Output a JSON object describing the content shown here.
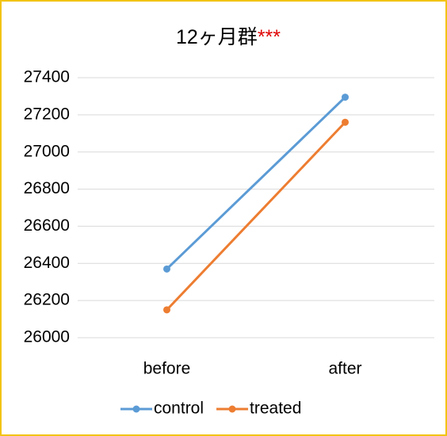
{
  "chart_data": {
    "type": "line",
    "title": "12ヶ月群",
    "annotation": "***",
    "categories": [
      "before",
      "after"
    ],
    "series": [
      {
        "name": "control",
        "color": "#5b9bd5",
        "values": [
          26370,
          27295
        ]
      },
      {
        "name": "treated",
        "color": "#ed7d31",
        "values": [
          26150,
          27160
        ]
      }
    ],
    "ylim": [
      26000,
      27400
    ],
    "yticks": [
      26000,
      26200,
      26400,
      26600,
      26800,
      27000,
      27200,
      27400
    ],
    "grid": true,
    "legend": "bottom"
  }
}
